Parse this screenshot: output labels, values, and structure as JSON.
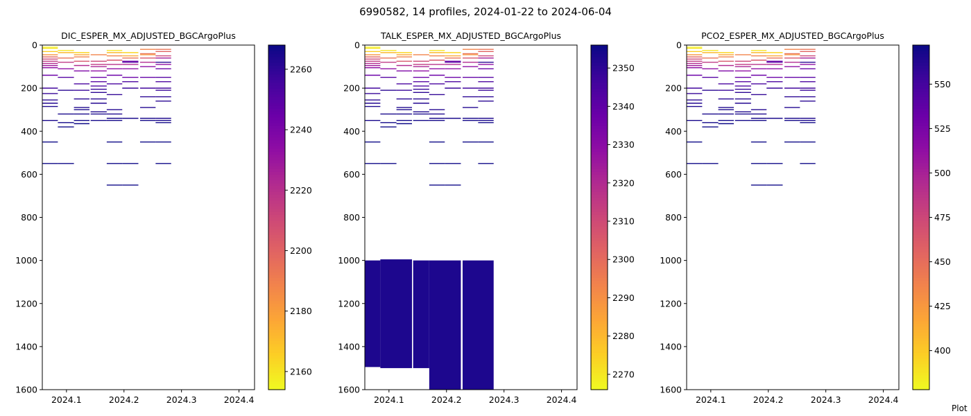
{
  "figure": {
    "title": "6990582, 14 profiles, 2024-01-22 to 2024-06-04",
    "footer": "Plot"
  },
  "chart_data": [
    {
      "type": "heatmap",
      "title": "DIC_ESPER_MX_ADJUSTED_BGCArgoPlus",
      "xlabel": "",
      "ylabel": "",
      "x_ticks": [
        "2024.1",
        "2024.2",
        "2024.3",
        "2024.4"
      ],
      "y_ticks": [
        "0",
        "200",
        "400",
        "600",
        "800",
        "1000",
        "1200",
        "1400",
        "1600"
      ],
      "xlim": [
        2024.058,
        2024.427
      ],
      "ylim": [
        1600,
        0
      ],
      "colormap": "plasma_r",
      "colorbar_range": [
        2154,
        2268
      ],
      "colorbar_ticks": [
        "2160",
        "2180",
        "2200",
        "2220",
        "2240",
        "2260"
      ]
    },
    {
      "type": "heatmap",
      "title": "TALK_ESPER_MX_ADJUSTED_BGCArgoPlus",
      "xlabel": "",
      "ylabel": "",
      "x_ticks": [
        "2024.1",
        "2024.2",
        "2024.3",
        "2024.4"
      ],
      "y_ticks": [
        "0",
        "200",
        "400",
        "600",
        "800",
        "1000",
        "1200",
        "1400",
        "1600"
      ],
      "xlim": [
        2024.058,
        2024.427
      ],
      "ylim": [
        1600,
        0
      ],
      "colormap": "plasma_r",
      "colorbar_range": [
        2266,
        2356
      ],
      "colorbar_ticks": [
        "2270",
        "2280",
        "2290",
        "2300",
        "2310",
        "2320",
        "2330",
        "2340",
        "2350"
      ],
      "deep_blocks": [
        {
          "x0": 2024.058,
          "x1": 2024.085,
          "top": 1000,
          "bottom": 1495
        },
        {
          "x0": 2024.085,
          "x1": 2024.14,
          "top": 995,
          "bottom": 1500
        },
        {
          "x0": 2024.142,
          "x1": 2024.17,
          "top": 1000,
          "bottom": 1500
        },
        {
          "x0": 2024.17,
          "x1": 2024.225,
          "top": 1000,
          "bottom": 1600
        },
        {
          "x0": 2024.228,
          "x1": 2024.282,
          "top": 1000,
          "bottom": 1600
        }
      ]
    },
    {
      "type": "heatmap",
      "title": "PCO2_ESPER_MX_ADJUSTED_BGCArgoPlus",
      "xlabel": "",
      "ylabel": "",
      "x_ticks": [
        "2024.1",
        "2024.2",
        "2024.3",
        "2024.4"
      ],
      "y_ticks": [
        "0",
        "200",
        "400",
        "600",
        "800",
        "1000",
        "1200",
        "1400",
        "1600"
      ],
      "xlim": [
        2024.058,
        2024.427
      ],
      "ylim": [
        1600,
        0
      ],
      "colormap": "plasma_r",
      "colorbar_range": [
        378,
        572
      ],
      "colorbar_ticks": [
        "400",
        "425",
        "450",
        "475",
        "500",
        "525",
        "550"
      ]
    }
  ],
  "profile_segments": [
    [
      2024.058,
      2024.085
    ],
    [
      2024.085,
      2024.113
    ],
    [
      2024.113,
      2024.14
    ],
    [
      2024.142,
      2024.17
    ],
    [
      2024.17,
      2024.197
    ],
    [
      2024.197,
      2024.225
    ],
    [
      2024.228,
      2024.255
    ],
    [
      2024.255,
      2024.282
    ]
  ],
  "profile_data": [
    [
      [
        10,
        0.02
      ],
      [
        15,
        0.05
      ],
      [
        30,
        0.1
      ],
      [
        45,
        0.25
      ],
      [
        55,
        0.4
      ],
      [
        65,
        0.5
      ],
      [
        75,
        0.55
      ],
      [
        85,
        0.6
      ],
      [
        95,
        0.65
      ],
      [
        105,
        0.7
      ],
      [
        140,
        0.8
      ],
      [
        200,
        0.9
      ],
      [
        225,
        0.92
      ],
      [
        255,
        0.95
      ],
      [
        270,
        0.96
      ],
      [
        285,
        0.97
      ],
      [
        350,
        0.98
      ],
      [
        450,
        1.0
      ],
      [
        550,
        1.0
      ]
    ],
    [
      [
        25,
        0.05
      ],
      [
        35,
        0.15
      ],
      [
        60,
        0.35
      ],
      [
        80,
        0.55
      ],
      [
        110,
        0.7
      ],
      [
        150,
        0.85
      ],
      [
        210,
        0.95
      ],
      [
        320,
        0.98
      ],
      [
        360,
        0.99
      ],
      [
        380,
        1.0
      ],
      [
        550,
        1.0
      ]
    ],
    [
      [
        35,
        0.08
      ],
      [
        45,
        0.2
      ],
      [
        55,
        0.3
      ],
      [
        75,
        0.45
      ],
      [
        95,
        0.6
      ],
      [
        120,
        0.75
      ],
      [
        180,
        0.88
      ],
      [
        210,
        0.92
      ],
      [
        250,
        0.95
      ],
      [
        290,
        0.97
      ],
      [
        300,
        0.98
      ],
      [
        320,
        0.98
      ],
      [
        350,
        0.99
      ],
      [
        365,
        1.0
      ]
    ],
    [
      [
        45,
        0.3
      ],
      [
        75,
        0.5
      ],
      [
        90,
        0.55
      ],
      [
        100,
        0.62
      ],
      [
        120,
        0.7
      ],
      [
        150,
        0.8
      ],
      [
        170,
        0.85
      ],
      [
        190,
        0.88
      ],
      [
        205,
        0.92
      ],
      [
        220,
        0.94
      ],
      [
        250,
        0.95
      ],
      [
        270,
        0.96
      ],
      [
        310,
        0.97
      ],
      [
        320,
        0.98
      ],
      [
        350,
        0.99
      ]
    ],
    [
      [
        25,
        0.05
      ],
      [
        35,
        0.15
      ],
      [
        50,
        0.3
      ],
      [
        70,
        0.45
      ],
      [
        90,
        0.58
      ],
      [
        110,
        0.7
      ],
      [
        140,
        0.8
      ],
      [
        180,
        0.88
      ],
      [
        230,
        0.93
      ],
      [
        300,
        0.96
      ],
      [
        320,
        0.97
      ],
      [
        340,
        0.98
      ],
      [
        350,
        0.99
      ],
      [
        450,
        1.0
      ],
      [
        550,
        1.0
      ],
      [
        650,
        1.0
      ]
    ],
    [
      [
        35,
        0.08
      ],
      [
        50,
        0.2
      ],
      [
        60,
        0.35
      ],
      [
        75,
        0.8
      ],
      [
        80,
        0.85
      ],
      [
        90,
        0.6
      ],
      [
        110,
        0.7
      ],
      [
        150,
        0.8
      ],
      [
        170,
        0.88
      ],
      [
        200,
        0.92
      ],
      [
        340,
        0.98
      ],
      [
        550,
        1.0
      ],
      [
        650,
        1.0
      ]
    ],
    [
      [
        20,
        0.3
      ],
      [
        40,
        0.35
      ],
      [
        45,
        0.25
      ],
      [
        60,
        0.45
      ],
      [
        80,
        0.6
      ],
      [
        100,
        0.7
      ],
      [
        150,
        0.82
      ],
      [
        200,
        0.9
      ],
      [
        240,
        0.94
      ],
      [
        290,
        0.96
      ],
      [
        340,
        0.98
      ],
      [
        350,
        0.99
      ],
      [
        450,
        1.0
      ]
    ],
    [
      [
        20,
        0.35
      ],
      [
        30,
        0.4
      ],
      [
        50,
        0.5
      ],
      [
        60,
        0.65
      ],
      [
        80,
        0.95
      ],
      [
        90,
        0.7
      ],
      [
        110,
        0.8
      ],
      [
        150,
        0.85
      ],
      [
        170,
        0.88
      ],
      [
        200,
        0.9
      ],
      [
        210,
        0.92
      ],
      [
        240,
        0.94
      ],
      [
        260,
        0.95
      ],
      [
        340,
        0.97
      ],
      [
        350,
        0.98
      ],
      [
        360,
        0.99
      ],
      [
        450,
        1.0
      ],
      [
        550,
        1.0
      ]
    ]
  ]
}
